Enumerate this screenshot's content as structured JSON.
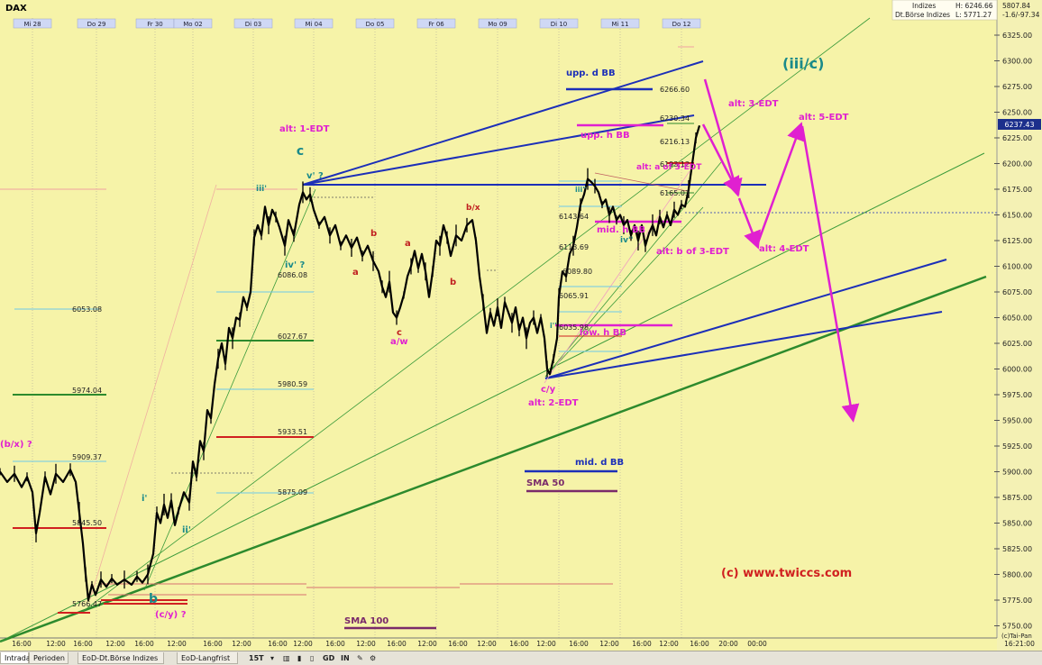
{
  "header": {
    "symbol": "DAX",
    "info_line1_left": "Indizes",
    "info_line1_mid": "H: 6246.66",
    "info_line1_right": "5807.84",
    "info_line2_left": "Dt.Börse Indizes",
    "info_line2_mid": "L: 5771.27",
    "info_line2_right": "-1.6/-97.34",
    "price_tag": "6237.43"
  },
  "chart_data": {
    "type": "candlestick",
    "title": "DAX",
    "ylim": [
      5745,
      6338
    ],
    "y_ticks": [
      5750,
      5775,
      5800,
      5825,
      5850,
      5875,
      5900,
      5925,
      5950,
      5975,
      6000,
      6025,
      6050,
      6075,
      6100,
      6125,
      6150,
      6175,
      6200,
      6225,
      6250,
      6275,
      6300,
      6325
    ],
    "day_labels": [
      "Mi 28",
      "Do 29",
      "Fr 30",
      "Mo 02",
      "Di 03",
      "Mi 04",
      "Do 05",
      "Fr 06",
      "Mo 09",
      "Di 10",
      "Mi 11",
      "Do 12"
    ],
    "hour_labels": [
      "16:00",
      "12:00",
      "16:00",
      "12:00",
      "16:00",
      "12:00",
      "16:00",
      "12:00",
      "16:00",
      "12:00",
      "16:00",
      "12:00",
      "16:00",
      "12:00",
      "16:00",
      "12:00",
      "16:00",
      "12:00",
      "16:00",
      "12:00",
      "16:00",
      "12:00",
      "16:00",
      "20:00",
      "00:00"
    ],
    "time_readout": "16:21:00",
    "copyright_short": "(c)Tai-Pan",
    "price_path": [
      [
        0,
        5900
      ],
      [
        8,
        5890
      ],
      [
        16,
        5898
      ],
      [
        24,
        5885
      ],
      [
        30,
        5895
      ],
      [
        36,
        5880
      ],
      [
        40,
        5840
      ],
      [
        44,
        5860
      ],
      [
        50,
        5895
      ],
      [
        56,
        5878
      ],
      [
        62,
        5898
      ],
      [
        70,
        5890
      ],
      [
        78,
        5902
      ],
      [
        84,
        5890
      ],
      [
        88,
        5860
      ],
      [
        92,
        5830
      ],
      [
        95,
        5800
      ],
      [
        98,
        5775
      ],
      [
        102,
        5790
      ],
      [
        106,
        5780
      ],
      [
        112,
        5795
      ],
      [
        118,
        5788
      ],
      [
        124,
        5796
      ],
      [
        130,
        5790
      ],
      [
        138,
        5795
      ],
      [
        146,
        5790
      ],
      [
        152,
        5798
      ],
      [
        158,
        5792
      ],
      [
        164,
        5800
      ],
      [
        170,
        5820
      ],
      [
        174,
        5860
      ],
      [
        178,
        5850
      ],
      [
        182,
        5868
      ],
      [
        186,
        5855
      ],
      [
        190,
        5872
      ],
      [
        194,
        5848
      ],
      [
        198,
        5862
      ],
      [
        204,
        5880
      ],
      [
        210,
        5870
      ],
      [
        214,
        5910
      ],
      [
        218,
        5895
      ],
      [
        222,
        5930
      ],
      [
        226,
        5920
      ],
      [
        230,
        5960
      ],
      [
        234,
        5952
      ],
      [
        238,
        5985
      ],
      [
        242,
        6010
      ],
      [
        246,
        6025
      ],
      [
        250,
        6005
      ],
      [
        254,
        6040
      ],
      [
        258,
        6030
      ],
      [
        262,
        6050
      ],
      [
        266,
        6048
      ],
      [
        270,
        6070
      ],
      [
        274,
        6060
      ],
      [
        278,
        6075
      ],
      [
        282,
        6128
      ],
      [
        286,
        6140
      ],
      [
        290,
        6130
      ],
      [
        294,
        6158
      ],
      [
        298,
        6140
      ],
      [
        302,
        6155
      ],
      [
        306,
        6148
      ],
      [
        310,
        6138
      ],
      [
        316,
        6120
      ],
      [
        320,
        6145
      ],
      [
        326,
        6130
      ],
      [
        332,
        6160
      ],
      [
        336,
        6172
      ],
      [
        340,
        6165
      ],
      [
        344,
        6170
      ],
      [
        348,
        6155
      ],
      [
        354,
        6140
      ],
      [
        360,
        6148
      ],
      [
        366,
        6130
      ],
      [
        372,
        6140
      ],
      [
        378,
        6120
      ],
      [
        384,
        6130
      ],
      [
        390,
        6118
      ],
      [
        396,
        6128
      ],
      [
        402,
        6110
      ],
      [
        408,
        6120
      ],
      [
        414,
        6105
      ],
      [
        420,
        6095
      ],
      [
        424,
        6080
      ],
      [
        428,
        6070
      ],
      [
        432,
        6085
      ],
      [
        436,
        6055
      ],
      [
        440,
        6050
      ],
      [
        444,
        6060
      ],
      [
        448,
        6072
      ],
      [
        452,
        6090
      ],
      [
        456,
        6100
      ],
      [
        460,
        6115
      ],
      [
        464,
        6098
      ],
      [
        468,
        6112
      ],
      [
        472,
        6095
      ],
      [
        476,
        6070
      ],
      [
        480,
        6095
      ],
      [
        484,
        6125
      ],
      [
        488,
        6120
      ],
      [
        492,
        6140
      ],
      [
        496,
        6128
      ],
      [
        500,
        6110
      ],
      [
        506,
        6130
      ],
      [
        512,
        6125
      ],
      [
        518,
        6140
      ],
      [
        524,
        6145
      ],
      [
        528,
        6125
      ],
      [
        532,
        6090
      ],
      [
        536,
        6065
      ],
      [
        540,
        6035
      ],
      [
        544,
        6055
      ],
      [
        548,
        6042
      ],
      [
        552,
        6060
      ],
      [
        556,
        6040
      ],
      [
        560,
        6065
      ],
      [
        564,
        6055
      ],
      [
        568,
        6045
      ],
      [
        572,
        6060
      ],
      [
        576,
        6038
      ],
      [
        580,
        6050
      ],
      [
        584,
        6030
      ],
      [
        588,
        6045
      ],
      [
        592,
        6050
      ],
      [
        596,
        6035
      ],
      [
        600,
        6050
      ],
      [
        604,
        6030
      ],
      [
        607,
        6000
      ],
      [
        610,
        5995
      ],
      [
        614,
        6010
      ],
      [
        618,
        6030
      ],
      [
        620,
        6070
      ],
      [
        624,
        6095
      ],
      [
        628,
        6090
      ],
      [
        632,
        6112
      ],
      [
        636,
        6120
      ],
      [
        640,
        6138
      ],
      [
        644,
        6160
      ],
      [
        648,
        6170
      ],
      [
        652,
        6185
      ],
      [
        656,
        6182
      ],
      [
        660,
        6178
      ],
      [
        664,
        6172
      ],
      [
        668,
        6160
      ],
      [
        672,
        6165
      ],
      [
        676,
        6150
      ],
      [
        680,
        6158
      ],
      [
        684,
        6145
      ],
      [
        688,
        6150
      ],
      [
        692,
        6140
      ],
      [
        696,
        6145
      ],
      [
        700,
        6130
      ],
      [
        704,
        6140
      ],
      [
        708,
        6125
      ],
      [
        712,
        6140
      ],
      [
        716,
        6120
      ],
      [
        720,
        6132
      ],
      [
        724,
        6140
      ],
      [
        728,
        6130
      ],
      [
        732,
        6148
      ],
      [
        736,
        6138
      ],
      [
        740,
        6150
      ],
      [
        744,
        6140
      ],
      [
        748,
        6155
      ],
      [
        752,
        6150
      ],
      [
        756,
        6160
      ],
      [
        760,
        6158
      ],
      [
        764,
        6175
      ],
      [
        768,
        6200
      ],
      [
        772,
        6225
      ],
      [
        776,
        6237
      ]
    ],
    "price_labels": [
      {
        "value": "6266.60"
      },
      {
        "value": "6230.34"
      },
      {
        "value": "6216.13"
      },
      {
        "value": "6193.12"
      },
      {
        "value": "6165.03"
      },
      {
        "value": "6143.64"
      },
      {
        "value": "6113.69"
      },
      {
        "value": "6089.80"
      },
      {
        "value": "6065.91"
      },
      {
        "value": "6035.98"
      },
      {
        "value": "6086.08"
      },
      {
        "value": "6053.08"
      },
      {
        "value": "6027.67"
      },
      {
        "value": "5980.59"
      },
      {
        "value": "5974.04"
      },
      {
        "value": "5933.51"
      },
      {
        "value": "5909.37"
      },
      {
        "value": "5875.09"
      },
      {
        "value": "5845.50"
      },
      {
        "value": "5766.47"
      }
    ],
    "annotations": [
      "upp. d BB",
      "(iii/c)",
      "alt: 3-EDT",
      "alt: 5-EDT",
      "upp. h BB",
      "alt: 1-EDT",
      "c",
      "v' ?",
      "iii'",
      "alt: a of 3-EDT",
      "mid. h BB",
      "b/x",
      "b",
      "a",
      "a",
      "b",
      "iv' ?",
      "iv''",
      "alt: b of 3-EDT",
      "alt: 4-EDT",
      "c",
      "a/w",
      "low. h BB",
      "c/y",
      "alt: 2-EDT",
      "(b/x) ?",
      "mid. d BB",
      "SMA 50",
      "i'",
      "ii'",
      "b",
      "(c/y) ?",
      "SMA 100",
      "(c) www.twiccs.com",
      "iii''",
      "i''"
    ]
  },
  "toolbar": {
    "tabs": [
      "Intraday",
      "Perioden",
      "EoD-Dt.Börse Indizes",
      "EoD-Langfrist"
    ],
    "interval": "15T",
    "buttons": [
      "GD",
      "IN"
    ]
  }
}
